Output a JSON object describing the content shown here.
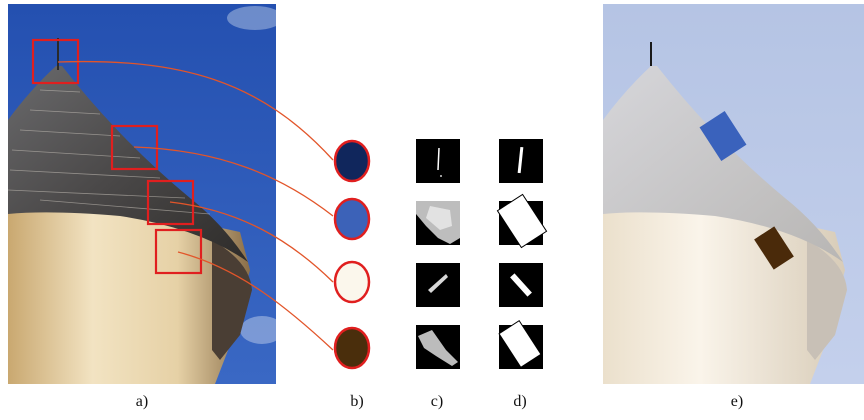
{
  "figure": {
    "panel_labels": [
      "a)",
      "b)",
      "c)",
      "d)",
      "e)"
    ],
    "colors": {
      "sky": "#2a58b8",
      "highlight_box": "#e01f1f",
      "connector": "#e2552a",
      "swatch_outline": "#e01f1f"
    },
    "swatches": [
      {
        "fill": "#10265c"
      },
      {
        "fill": "#3c62b8"
      },
      {
        "fill": "#fbf7ec"
      },
      {
        "fill": "#4a2e0c"
      }
    ],
    "rectified_fill": "#ffffff",
    "overlay_patch_colors": [
      "#3a62bc",
      "#4a2a0a"
    ]
  }
}
